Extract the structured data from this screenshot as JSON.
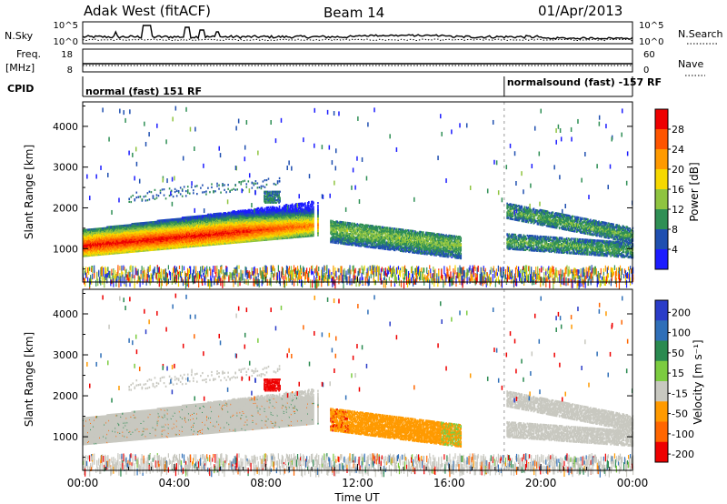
{
  "header": {
    "station": "Adak West (fitACF)",
    "beam": "Beam 14",
    "date": "01/Apr/2013"
  },
  "strip_labels": {
    "nsky": "N.Sky",
    "nsky_ticks": [
      "10^5",
      "10^0"
    ],
    "nsearch": "N.Search",
    "nsearch_ticks": [
      "10^5",
      "10^0"
    ],
    "freq": "Freq.",
    "freq_unit": "[MHz]",
    "freq_ticks": [
      "18",
      "8"
    ],
    "nave": "Nave",
    "nave_ticks": [
      "60",
      "0"
    ],
    "cpid": "CPID"
  },
  "cpid_segments": [
    {
      "label": "normal (fast) 151 RF",
      "start_hour": 0
    },
    {
      "label": "normalsound (fast) -157 RF",
      "start_hour": 18.4
    }
  ],
  "chart_data": [
    {
      "type": "heatmap",
      "name": "power",
      "ylabel": "Slant Range [km]",
      "ylim": [
        180,
        4600
      ],
      "yticks": [
        1000,
        2000,
        3000,
        4000
      ],
      "xlim_hours": [
        0,
        24
      ],
      "colorbar": {
        "label": "Power [dB]",
        "ticks": [
          "4",
          "8",
          "12",
          "16",
          "20",
          "24",
          "28"
        ],
        "colors": [
          "#1c1cff",
          "#1f4fb0",
          "#2f8f55",
          "#8fc440",
          "#f6d800",
          "#ff9a00",
          "#ff5500",
          "#ee0000"
        ]
      },
      "regions": [
        {
          "desc": "main echo band",
          "hours": [
            0,
            10.3
          ],
          "range_km": [
            800,
            1900
          ],
          "peak_db": 28
        },
        {
          "desc": "upper patches",
          "hours": [
            2.0,
            8.6
          ],
          "range_km": [
            2100,
            2700
          ],
          "peak_db": 8
        },
        {
          "desc": "afternoon band",
          "hours": [
            10.8,
            16.5
          ],
          "range_km": [
            950,
            1850
          ],
          "peak_db": 16
        },
        {
          "desc": "evening bands",
          "hours": [
            18.5,
            24
          ],
          "range_km": [
            800,
            2100
          ],
          "peak_db": 12
        }
      ]
    },
    {
      "type": "heatmap",
      "name": "velocity",
      "ylabel": "Slant Range [km]",
      "ylim": [
        180,
        4600
      ],
      "yticks": [
        1000,
        2000,
        3000,
        4000
      ],
      "xlim_hours": [
        0,
        24
      ],
      "colorbar": {
        "label": "Velocity [m s⁻¹]",
        "ticks": [
          "200",
          "100",
          "50",
          "15",
          "-15",
          "-50",
          "-100",
          "-200"
        ],
        "colors": [
          "#2a3cc8",
          "#2f6fb8",
          "#2a8a50",
          "#7ccc40",
          "#c8c8c0",
          "#ff9a00",
          "#ff6600",
          "#ee0000"
        ]
      },
      "regions": [
        {
          "desc": "low-velocity band",
          "hours": [
            0,
            10.3
          ],
          "range_km": [
            800,
            1900
          ],
          "velocity": 0
        },
        {
          "desc": "red patch",
          "hours": [
            8.0,
            8.6
          ],
          "range_km": [
            2150,
            2450
          ],
          "velocity": -200
        },
        {
          "desc": "orange band",
          "hours": [
            11.0,
            16.2
          ],
          "range_km": [
            950,
            1700
          ],
          "velocity": -50
        },
        {
          "desc": "evening grey bands",
          "hours": [
            18.5,
            24
          ],
          "range_km": [
            800,
            2100
          ],
          "velocity": 0
        }
      ]
    }
  ],
  "x_axis": {
    "label": "Time UT",
    "ticks": [
      "00:00",
      "04:00",
      "08:00",
      "12:00",
      "16:00",
      "20:00",
      "00:00"
    ]
  }
}
